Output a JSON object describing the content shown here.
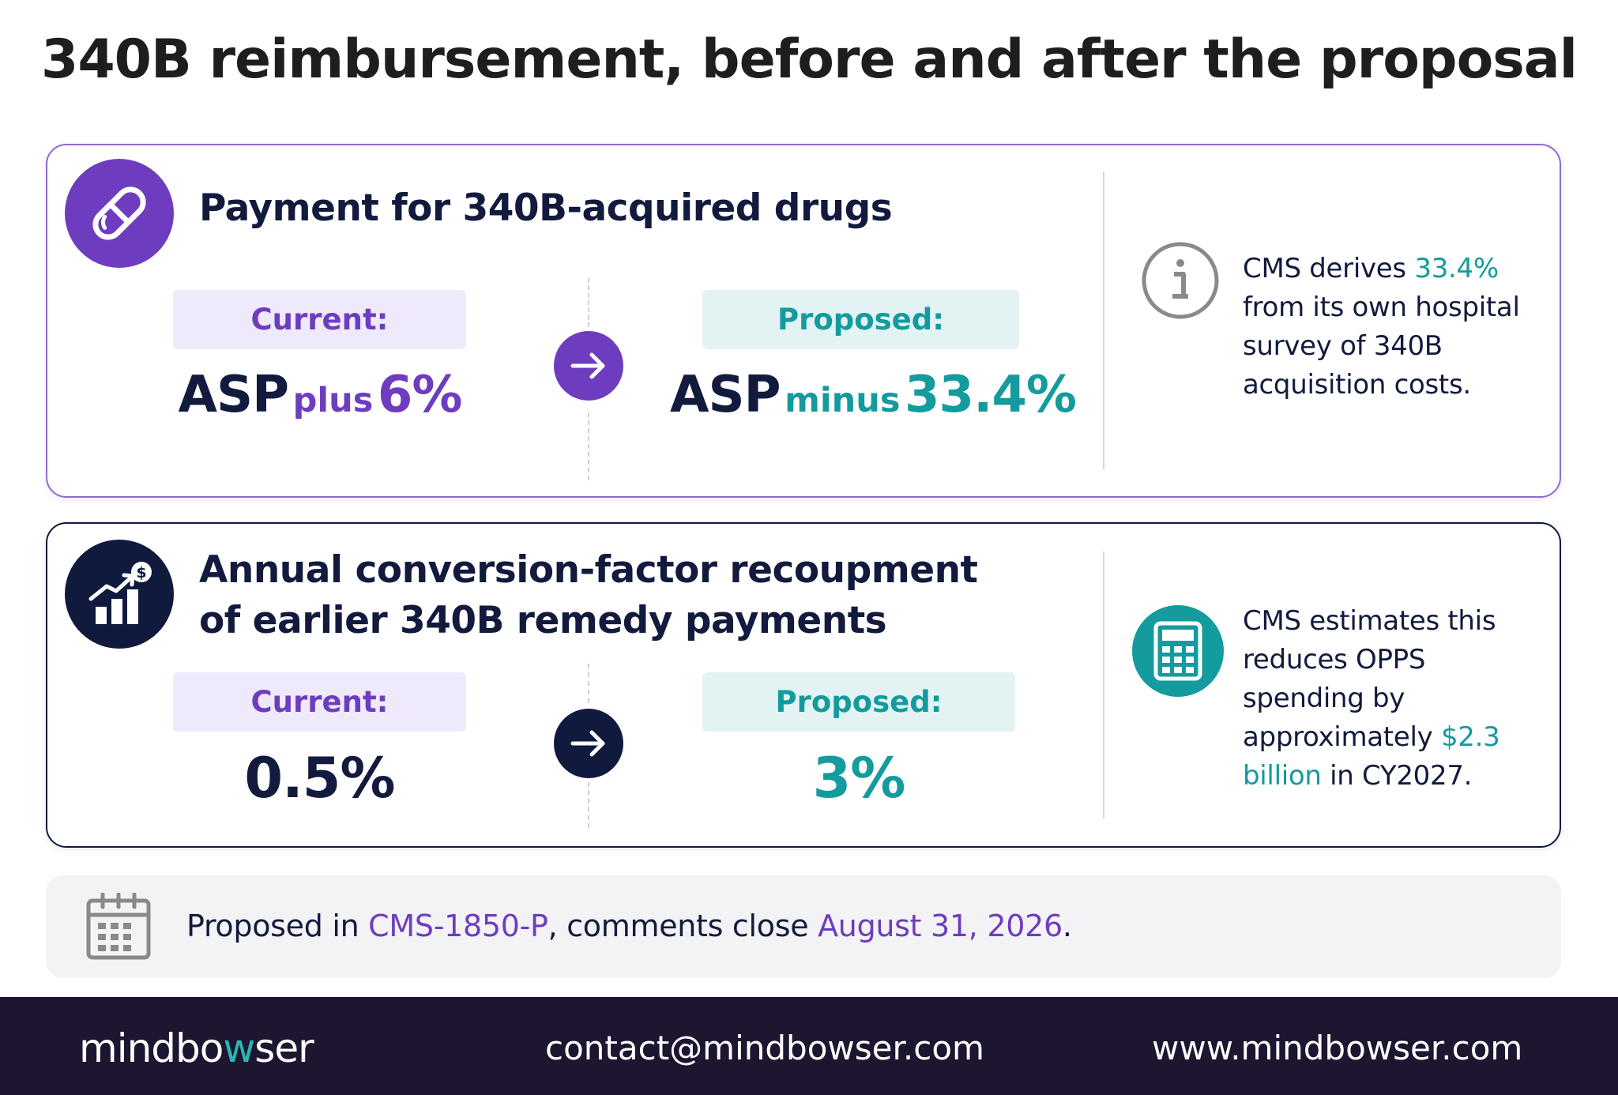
{
  "title": "340B reimbursement, before and after the proposal",
  "colors": {
    "purple": "#6e3cbf",
    "teal": "#139b9e",
    "navy": "#0f1a3d",
    "footer_bg": "#1e1530"
  },
  "section1": {
    "icon": "pill-icon",
    "heading": "Payment for 340B-acquired drugs",
    "current": {
      "label": "Current:",
      "base": "ASP",
      "op": "plus",
      "pct": "6%"
    },
    "proposed": {
      "label": "Proposed:",
      "base": "ASP",
      "op": "minus",
      "pct": "33.4%"
    },
    "note": {
      "icon": "info-icon",
      "pre": "CMS derives",
      "highlight": "33.4%",
      "post": "from its own hospital survey of 340B acquisition costs."
    }
  },
  "section2": {
    "icon": "growth-chart-dollar-icon",
    "heading_line1": "Annual conversion-factor recoupment",
    "heading_line2": "of earlier 340B remedy payments",
    "current": {
      "label": "Current:",
      "value": "0.5%"
    },
    "proposed": {
      "label": "Proposed:",
      "value": "3%"
    },
    "note": {
      "icon": "calculator-icon",
      "pre": "CMS estimates this reduces OPPS spending by approximately",
      "highlight": "$2.3 billion",
      "post": "in CY2027."
    }
  },
  "footer_note": {
    "icon": "calendar-icon",
    "pre": "Proposed in",
    "rule": "CMS-1850-P",
    "mid": ", comments close",
    "date": "August 31, 2026",
    "post": "."
  },
  "footer": {
    "logo_pre": "mindbo",
    "logo_w": "w",
    "logo_post": "ser",
    "email": "contact@mindbowser.com",
    "website": "www.mindbowser.com"
  }
}
